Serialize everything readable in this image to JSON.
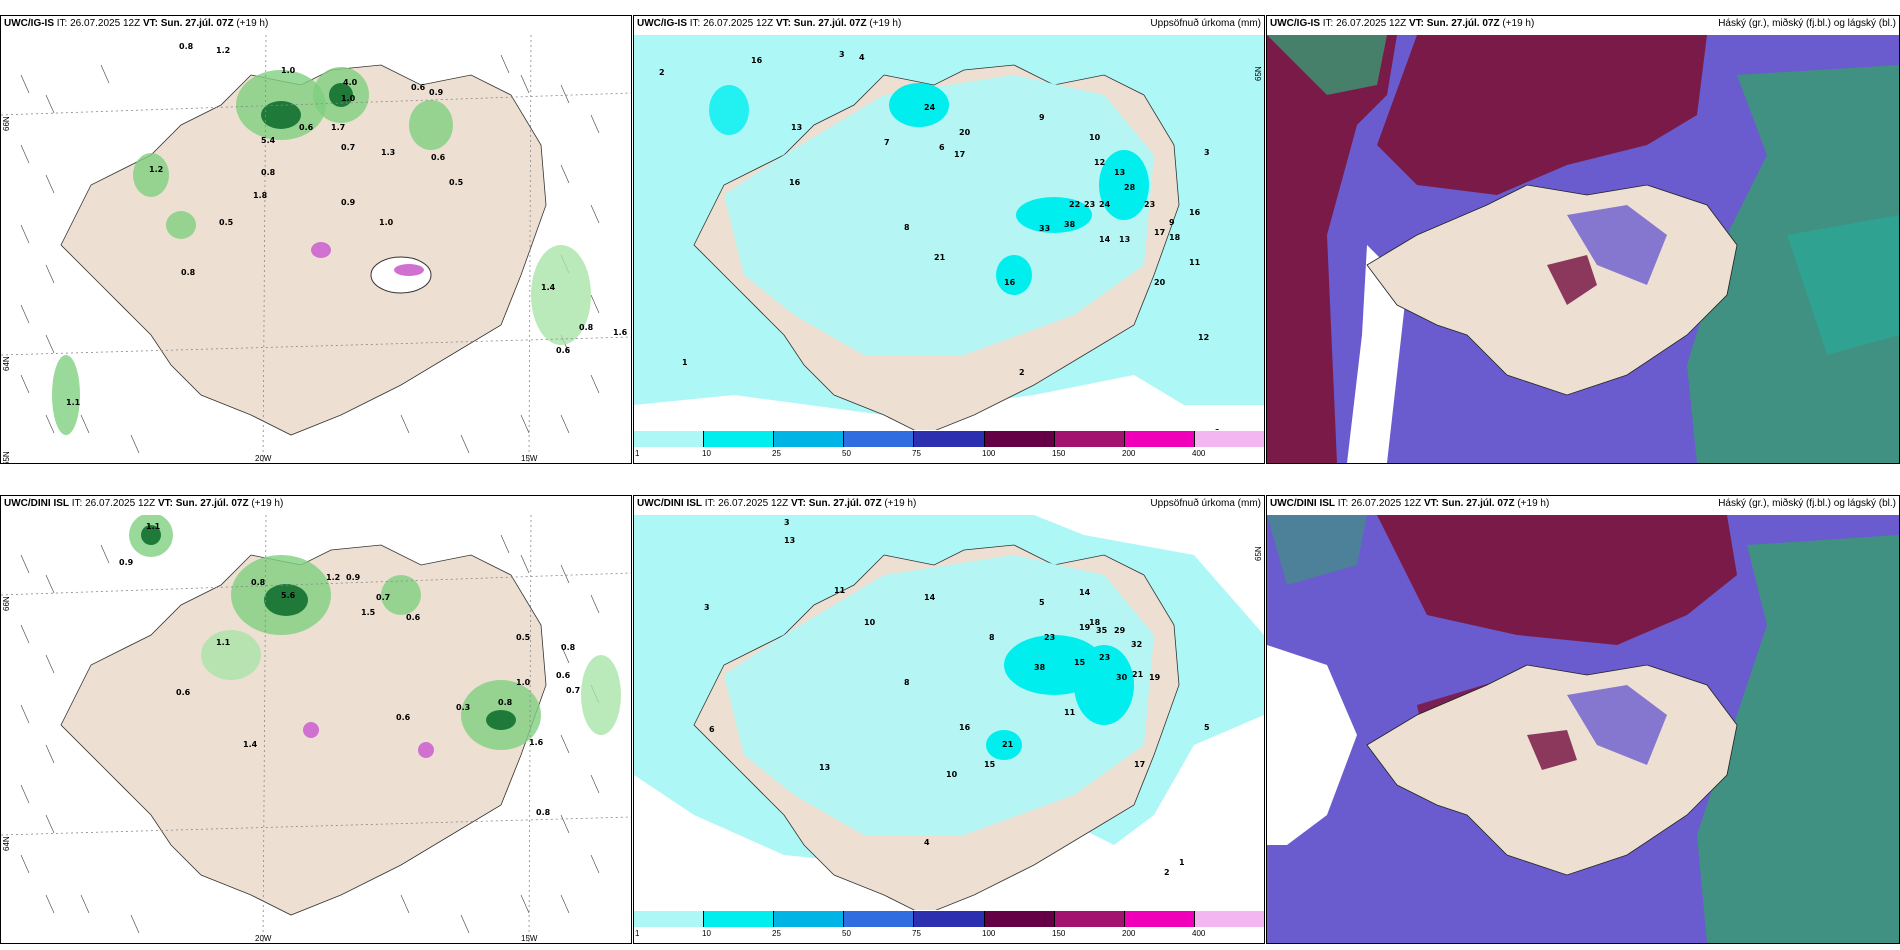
{
  "rows": [
    {
      "model": "UWC/IG-IS",
      "it_label": "IT:",
      "it_value": "26.07.2025 12Z",
      "vt_label": "VT:",
      "vt_value": "Sun. 27.júl. 07Z",
      "lead": "(+19 h)"
    },
    {
      "model": "UWC/DINI ISL",
      "it_label": "IT:",
      "it_value": "26.07.2025 12Z",
      "vt_label": "VT:",
      "vt_value": "Sun. 27.júl. 07Z",
      "lead": "(+19 h)"
    }
  ],
  "precip_title": "Uppsöfnuð úrkoma (mm)",
  "cloud_title": "Háský (gr.), miðský (fj.bl.) og lágský (bl.)",
  "axis": {
    "lat66": "66N",
    "lat64": "64N",
    "lat65": "65N",
    "lon20": "20W",
    "lon15": "15W"
  },
  "colorbar": {
    "labels": [
      "1",
      "10",
      "25",
      "50",
      "75",
      "100",
      "150",
      "200",
      "400"
    ],
    "colors": [
      "#aef7f7",
      "#00eeee",
      "#00b4e6",
      "#2f6de0",
      "#2c2fb0",
      "#650046",
      "#a3126f",
      "#f000b8",
      "#f4b6f0"
    ]
  },
  "precip_values_top": [
    "16",
    "3",
    "4",
    "2",
    "13",
    "16",
    "7",
    "24",
    "20",
    "17",
    "9",
    "10",
    "6",
    "12",
    "13",
    "28",
    "22",
    "23",
    "24",
    "23",
    "33",
    "38",
    "14",
    "13",
    "17",
    "18",
    "16",
    "9",
    "11",
    "21",
    "16",
    "8",
    "20",
    "2",
    "3",
    "1",
    "12",
    "6"
  ],
  "precip_values_bottom": [
    "3",
    "13",
    "11",
    "10",
    "14",
    "18",
    "5",
    "8",
    "14",
    "29",
    "35",
    "19",
    "32",
    "23",
    "23",
    "38",
    "30",
    "21",
    "19",
    "15",
    "16",
    "21",
    "13",
    "15",
    "10",
    "11",
    "17",
    "8",
    "4",
    "3",
    "1",
    "2",
    "6",
    "5"
  ],
  "wind_values_top": [
    "0.8",
    "1.2",
    "1.0",
    "4.0",
    "1.0",
    "0.6",
    "0.9",
    "5.4",
    "0.8",
    "0.6",
    "1.7",
    "0.7",
    "1.3",
    "0.6",
    "1.8",
    "0.9",
    "0.5",
    "1.0",
    "0.5",
    "0.8",
    "1.2",
    "1.4",
    "0.8",
    "0.6",
    "1.6",
    "1.1"
  ],
  "wind_values_bottom": [
    "1.1",
    "0.9",
    "0.8",
    "5.6",
    "1.2",
    "0.9",
    "1.5",
    "0.7",
    "0.6",
    "0.5",
    "0.8",
    "1.0",
    "0.6",
    "0.7",
    "1.4",
    "0.3",
    "0.8",
    "1.6",
    "0.6",
    "0.8",
    "1.1",
    "0.6"
  ]
}
